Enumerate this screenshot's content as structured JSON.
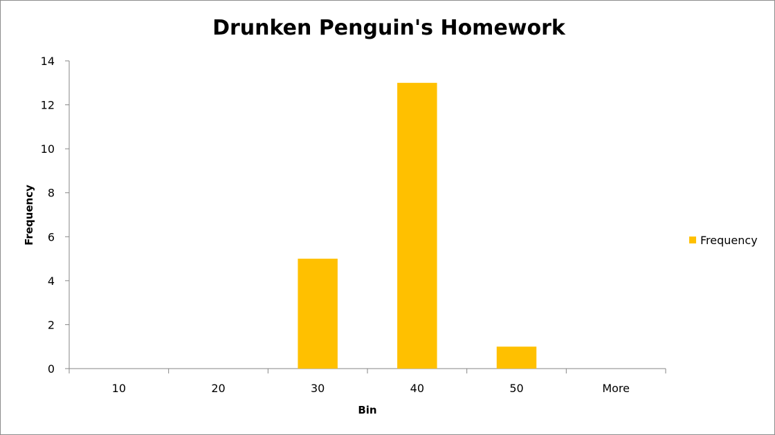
{
  "chart_data": {
    "type": "bar",
    "title": "Drunken Penguin's Homework",
    "xlabel": "Bin",
    "ylabel": "Frequency",
    "categories": [
      "10",
      "20",
      "30",
      "40",
      "50",
      "More"
    ],
    "series": [
      {
        "name": "Frequency",
        "values": [
          0,
          0,
          5,
          13,
          1,
          0
        ],
        "color": "#FFC000"
      }
    ],
    "ylim": [
      0,
      14
    ],
    "yticks": [
      0,
      2,
      4,
      6,
      8,
      10,
      12,
      14
    ],
    "grid": false,
    "legend_position": "right"
  }
}
